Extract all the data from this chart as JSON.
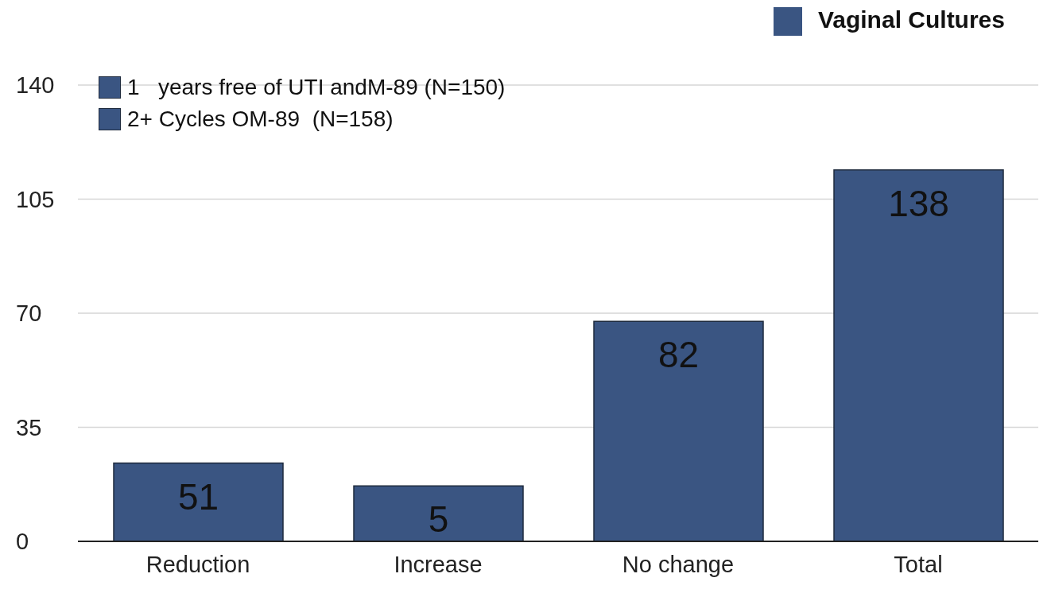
{
  "chart_data": {
    "type": "bar",
    "categories": [
      "Reduction",
      "Increase",
      "No change",
      "Total"
    ],
    "series": [
      {
        "name": "Vaginal Cultures",
        "color": "#3a5582",
        "values": [
          24,
          17,
          67.5,
          114
        ]
      }
    ],
    "value_labels": [
      "51",
      "5",
      "82",
      "138"
    ],
    "annotations": [
      "1   years free of UTI andM-89 (N=150)",
      "2+ Cycles OM-89  (N=158)"
    ],
    "ylim": [
      0,
      140
    ],
    "yticks": [
      0,
      35,
      70,
      105,
      140
    ],
    "grid": "y",
    "legend": "top right"
  }
}
